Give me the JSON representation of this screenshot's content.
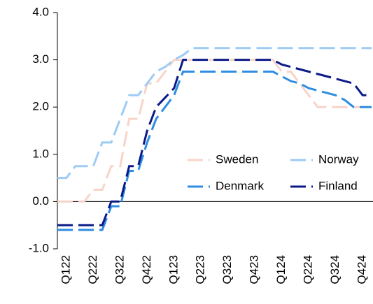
{
  "chart_data": {
    "type": "line",
    "categories": [
      null,
      "Q122",
      null,
      null,
      "Q222",
      null,
      null,
      "Q322",
      null,
      null,
      "Q422",
      null,
      null,
      "Q123",
      null,
      null,
      "Q223",
      null,
      null,
      "Q323",
      null,
      null,
      "Q423",
      null,
      null,
      "Q124",
      null,
      null,
      "Q224",
      null,
      null,
      "Q324",
      null,
      null,
      "Q424",
      null
    ],
    "series": [
      {
        "name": "Sweden",
        "color": "#f8d4c8",
        "values": [
          0,
          0,
          0,
          0,
          0.25,
          0.25,
          0.75,
          0.75,
          1.75,
          1.75,
          2.5,
          2.5,
          2.75,
          3,
          3,
          3,
          3,
          3,
          3,
          3,
          3,
          3,
          3,
          3,
          3,
          2.75,
          2.75,
          2.5,
          2.25,
          2,
          2,
          2,
          2,
          2,
          2,
          2
        ]
      },
      {
        "name": "Norway",
        "color": "#9dcbf4",
        "values": [
          0.5,
          0.5,
          0.75,
          0.75,
          0.75,
          1.25,
          1.25,
          1.75,
          2.25,
          2.25,
          2.5,
          2.75,
          2.85,
          3,
          3.1,
          3.25,
          3.25,
          3.25,
          3.25,
          3.25,
          3.25,
          3.25,
          3.25,
          3.25,
          3.25,
          3.25,
          3.25,
          3.25,
          3.25,
          3.25,
          3.25,
          3.25,
          3.25,
          3.25,
          3.25,
          3.25
        ]
      },
      {
        "name": "Denmark",
        "color": "#2e8de0",
        "values": [
          -0.6,
          -0.6,
          -0.6,
          -0.6,
          -0.6,
          -0.6,
          -0.1,
          -0.1,
          0.65,
          0.65,
          1.25,
          1.75,
          2,
          2.25,
          2.75,
          2.75,
          2.75,
          2.75,
          2.75,
          2.75,
          2.75,
          2.75,
          2.75,
          2.75,
          2.75,
          2.65,
          2.55,
          2.5,
          2.4,
          2.35,
          2.3,
          2.25,
          2.15,
          2,
          2,
          2
        ]
      },
      {
        "name": "Finland",
        "color": "#0b1a88",
        "values": [
          -0.5,
          -0.5,
          -0.5,
          -0.5,
          -0.5,
          -0.5,
          0,
          0,
          0.75,
          0.75,
          1.5,
          2,
          2.2,
          2.4,
          3,
          3,
          3,
          3,
          3,
          3,
          3,
          3,
          3,
          3,
          3,
          2.9,
          2.85,
          2.8,
          2.75,
          2.7,
          2.65,
          2.6,
          2.55,
          2.5,
          2.25,
          2.25
        ]
      }
    ],
    "ylim": [
      -1,
      4
    ],
    "yticks": [
      {
        "value": -1,
        "label": "-1.0"
      },
      {
        "value": 0,
        "label": "0.0"
      },
      {
        "value": 1,
        "label": "1.0"
      },
      {
        "value": 2,
        "label": "2.0"
      },
      {
        "value": 3,
        "label": "3.0"
      },
      {
        "value": 4,
        "label": "4.0"
      }
    ],
    "dashed": true,
    "legend": "center-right"
  }
}
